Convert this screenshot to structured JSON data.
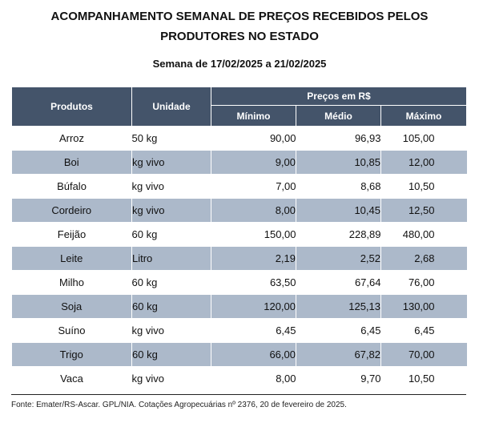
{
  "title": {
    "line1": "ACOMPANHAMENTO SEMANAL DE PREÇOS RECEBIDOS PELOS",
    "line2": "PRODUTORES NO ESTADO"
  },
  "subtitle": "Semana de 17/02/2025 a 21/02/2025",
  "table": {
    "headers": {
      "produtos": "Produtos",
      "unidade": "Unidade",
      "precos": "Preços em R$",
      "minimo": "Mínimo",
      "medio": "Médio",
      "maximo": "Máximo"
    },
    "rows": [
      {
        "produto": "Arroz",
        "unidade": "50 kg",
        "minimo": "90,00",
        "medio": "96,93",
        "maximo": "105,00"
      },
      {
        "produto": "Boi",
        "unidade": "kg vivo",
        "minimo": "9,00",
        "medio": "10,85",
        "maximo": "12,00"
      },
      {
        "produto": "Búfalo",
        "unidade": "kg vivo",
        "minimo": "7,00",
        "medio": "8,68",
        "maximo": "10,50"
      },
      {
        "produto": "Cordeiro",
        "unidade": "kg vivo",
        "minimo": "8,00",
        "medio": "10,45",
        "maximo": "12,50"
      },
      {
        "produto": "Feijão",
        "unidade": "60 kg",
        "minimo": "150,00",
        "medio": "228,89",
        "maximo": "480,00"
      },
      {
        "produto": "Leite",
        "unidade": "Litro",
        "minimo": "2,19",
        "medio": "2,52",
        "maximo": "2,68"
      },
      {
        "produto": "Milho",
        "unidade": "60 kg",
        "minimo": "63,50",
        "medio": "67,64",
        "maximo": "76,00"
      },
      {
        "produto": "Soja",
        "unidade": "60 kg",
        "minimo": "120,00",
        "medio": "125,13",
        "maximo": "130,00"
      },
      {
        "produto": "Suíno",
        "unidade": "kg vivo",
        "minimo": "6,45",
        "medio": "6,45",
        "maximo": "6,45"
      },
      {
        "produto": "Trigo",
        "unidade": "60 kg",
        "minimo": "66,00",
        "medio": "67,82",
        "maximo": "70,00"
      },
      {
        "produto": "Vaca",
        "unidade": "kg vivo",
        "minimo": "8,00",
        "medio": "9,70",
        "maximo": "10,50"
      }
    ]
  },
  "footer": "Fonte: Emater/RS-Ascar. GPL/NIA. Cotações Agropecuárias nº 2376, 20 de fevereiro de 2025.",
  "colors": {
    "header_bg": "#44546a",
    "alt_row_bg": "#acb9ca"
  }
}
